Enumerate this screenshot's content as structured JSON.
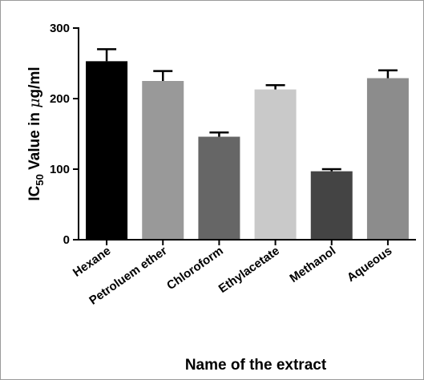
{
  "chart_data": {
    "type": "bar",
    "title": "",
    "xlabel": "Name of the extract",
    "ylabel": {
      "prefix": "IC",
      "subscript": "50",
      "middle": " Value in ",
      "greek": "μ",
      "suffix": "g/ml"
    },
    "categories": [
      "Hexane",
      "Petroluem ether",
      "Chloroform",
      "Ethylacetate",
      "Methanol",
      "Aqueous"
    ],
    "values": [
      253,
      225,
      146,
      213,
      97,
      229
    ],
    "errors": [
      17,
      14,
      6,
      6,
      3,
      11
    ],
    "colors": [
      "#000000",
      "#999999",
      "#666666",
      "#c9c9c9",
      "#444444",
      "#8c8c8c"
    ],
    "ylim": [
      0,
      300
    ],
    "yticks": [
      0,
      100,
      200,
      300
    ],
    "grid": false,
    "legend": "none"
  }
}
